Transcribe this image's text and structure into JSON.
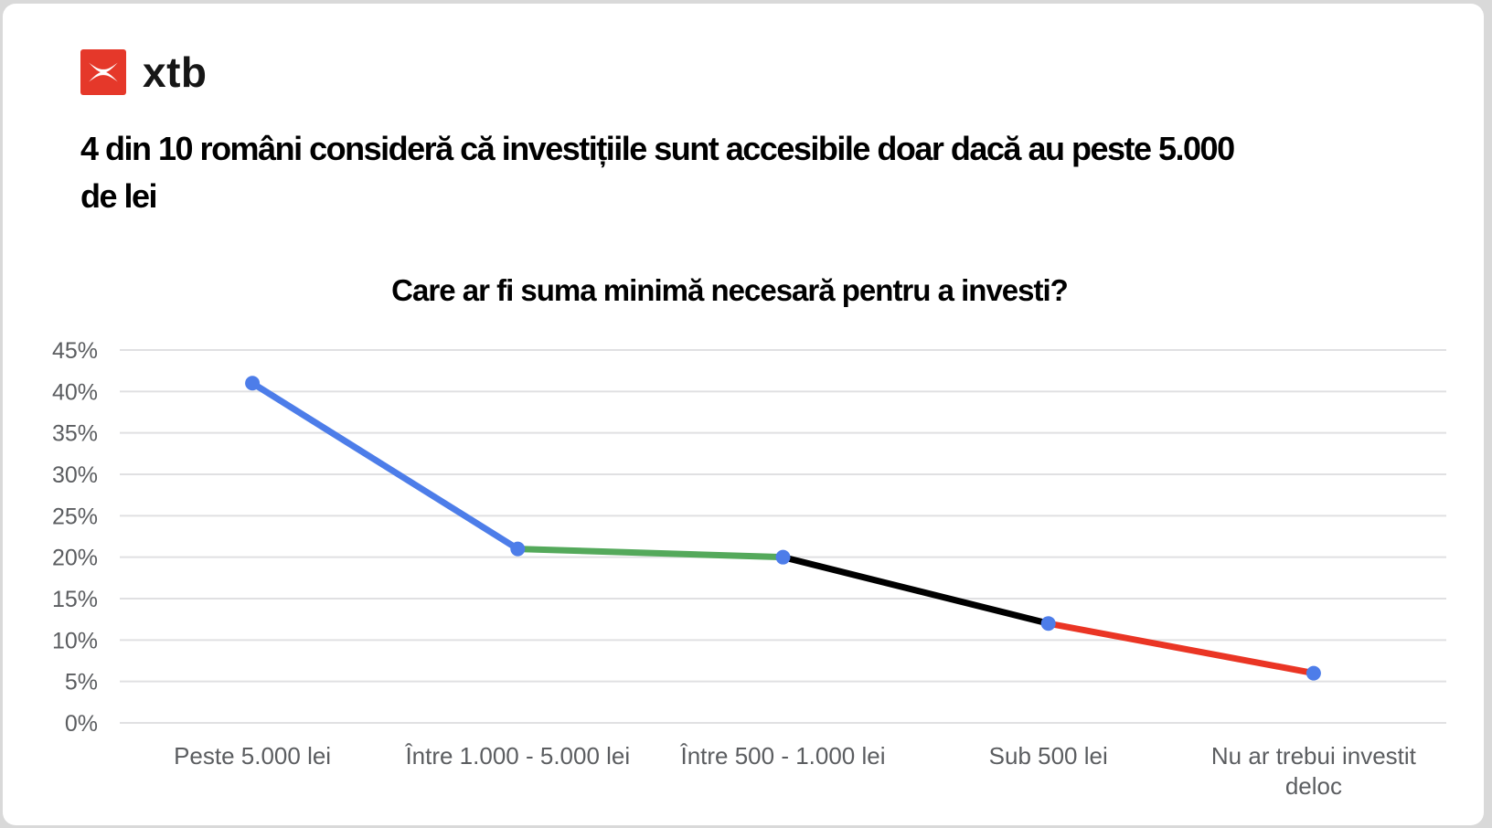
{
  "brand": {
    "wordmark": "xtb",
    "logo_color": "#e5382a"
  },
  "headline": "4 din 10 români consideră că investițiile sunt accesibile doar dacă au peste 5.000 de lei",
  "chart_data": {
    "type": "line",
    "title": "Care ar fi suma minimă necesară pentru a investi?",
    "categories": [
      "Peste 5.000 lei",
      "Între 1.000 - 5.000 lei",
      "Între 500 - 1.000 lei",
      "Sub 500 lei",
      "Nu ar trebui investit\ndeloc"
    ],
    "values": [
      41,
      21,
      20,
      12,
      6
    ],
    "value_unit": "%",
    "ylim": [
      0,
      45
    ],
    "ytick_step": 5,
    "yticks": [
      "0%",
      "5%",
      "10%",
      "15%",
      "20%",
      "25%",
      "30%",
      "35%",
      "40%",
      "45%"
    ],
    "grid": true,
    "legend": "none",
    "segment_colors": [
      "#4d7de9",
      "#54a95b",
      "#000000",
      "#ea3524"
    ],
    "point_color": "#4d7de9",
    "colors": {
      "gridline": "#e0e0e2",
      "axis_text": "#5b5d60"
    }
  }
}
